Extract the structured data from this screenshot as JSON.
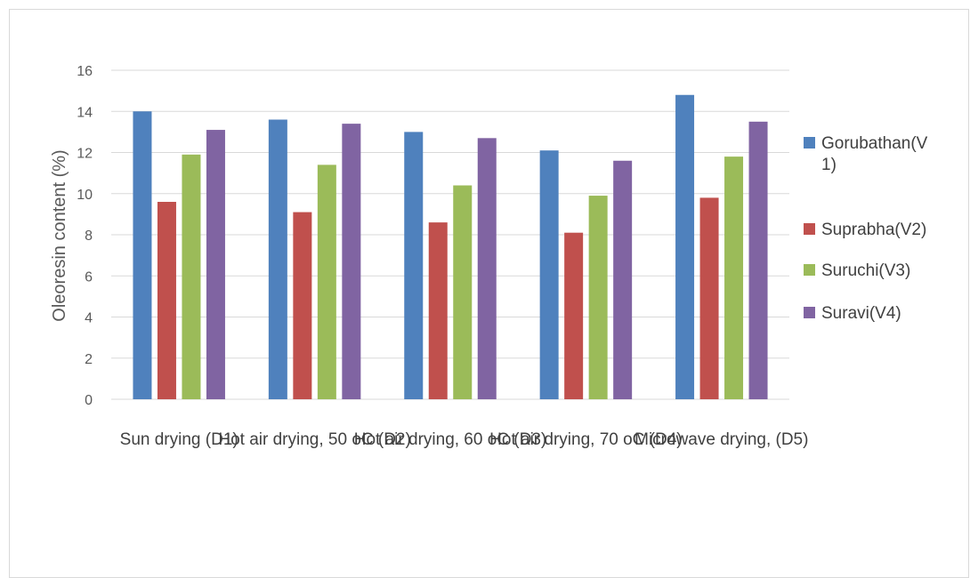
{
  "chart_data": {
    "type": "bar",
    "title": "",
    "xlabel": "",
    "ylabel": "Oleoresin content (%)",
    "ylim": [
      0,
      16
    ],
    "yticks": [
      0,
      2,
      4,
      6,
      8,
      10,
      12,
      14,
      16
    ],
    "grid": true,
    "legend_position": "right",
    "categories": [
      "Sun drying (D1)",
      "Hot air drying, 50 oC (D2)",
      "Hot air drying, 60 oC (D3)",
      "Hot air drying, 70 oC (D4)",
      "Microwave drying, (D5)"
    ],
    "series": [
      {
        "name": "Gorubathan(V1)",
        "legend_lines": [
          "Gorubathan(V",
          "1)"
        ],
        "color": "#4f81bd",
        "values": [
          14.0,
          13.6,
          13.0,
          12.1,
          14.8
        ]
      },
      {
        "name": "Suprabha(V2)",
        "legend_lines": [
          "Suprabha(V2)"
        ],
        "color": "#c0504d",
        "values": [
          9.6,
          9.1,
          8.6,
          8.1,
          9.8
        ]
      },
      {
        "name": "Suruchi(V3)",
        "legend_lines": [
          "Suruchi(V3)"
        ],
        "color": "#9bbb59",
        "values": [
          11.9,
          11.4,
          10.4,
          9.9,
          11.8
        ]
      },
      {
        "name": "Suravi(V4)",
        "legend_lines": [
          "Suravi(V4)"
        ],
        "color": "#8064a2",
        "values": [
          13.1,
          13.4,
          12.7,
          11.6,
          13.5
        ]
      }
    ]
  }
}
